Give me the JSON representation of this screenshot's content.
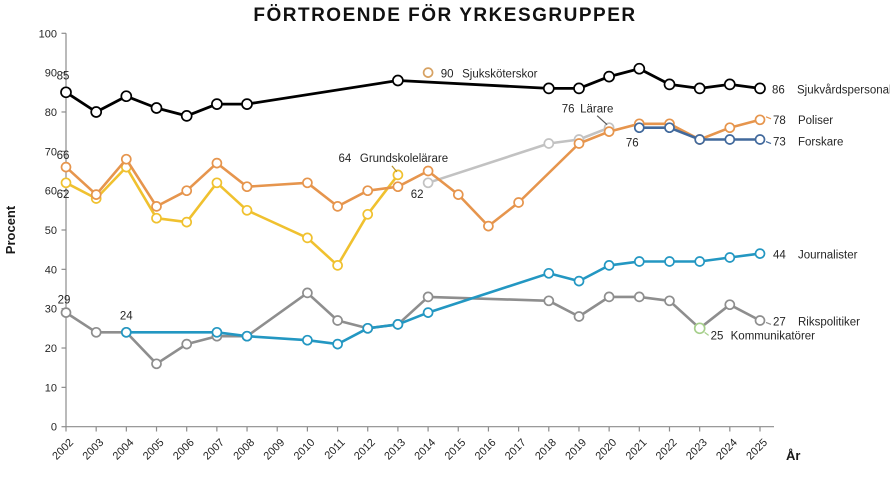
{
  "chart_data": {
    "type": "line",
    "title": "FÖRTROENDE FÖR YRKESGRUPPER",
    "xlabel": "År",
    "ylabel": "Procent",
    "ylim": [
      0,
      100
    ],
    "ytick_step": 10,
    "grid": false,
    "legend_position": "line-end-labels",
    "categories": [
      "2002",
      "2003",
      "2004",
      "2005",
      "2006",
      "2007",
      "2008",
      "2009",
      "2010",
      "2011",
      "2012",
      "2013",
      "2014",
      "2015",
      "2016",
      "2017",
      "2018",
      "2019",
      "2020",
      "2021",
      "2022",
      "2023",
      "2024",
      "2025"
    ],
    "series": [
      {
        "id": "larare",
        "name": "Lärare",
        "color": "#c2c2c2",
        "line_width": 2.6,
        "values": [
          null,
          null,
          null,
          null,
          null,
          null,
          null,
          null,
          null,
          null,
          null,
          null,
          62,
          null,
          null,
          null,
          72,
          73,
          76,
          null,
          null,
          null,
          null,
          null
        ],
        "labels": [
          {
            "text": "62",
            "index": 12,
            "dx": -11,
            "dy": 15,
            "anchor": "middle"
          },
          {
            "text": "76",
            "index": 18,
            "dx": -41,
            "dy": -15,
            "anchor": "middle"
          },
          {
            "text": "Lärare",
            "index": 18,
            "dx": -29,
            "dy": -15,
            "anchor": "start"
          }
        ],
        "leaders": [
          {
            "index": 18,
            "seg": [
              -12,
              -12,
              -2,
              -3
            ],
            "color": "#595959"
          }
        ]
      },
      {
        "id": "grundskolelarare",
        "name": "Grundskolelärare",
        "color": "#f0c12f",
        "line_width": 2.6,
        "values": [
          62,
          58,
          66,
          53,
          52,
          62,
          55,
          null,
          48,
          41,
          54,
          64,
          null,
          null,
          null,
          null,
          null,
          null,
          null,
          null,
          null,
          null,
          null,
          null
        ],
        "labels": [
          {
            "text": "62",
            "index": 0,
            "dx": -3,
            "dy": 15,
            "anchor": "middle"
          },
          {
            "text": "64",
            "index": 11,
            "dx": -53,
            "dy": -13,
            "anchor": "middle"
          },
          {
            "text": "Grundskolelärare",
            "index": 11,
            "dx": -38,
            "dy": -13,
            "anchor": "start"
          }
        ],
        "leaders": [
          {
            "index": 11,
            "seg": [
              -6,
              -9,
              -1,
              -3
            ],
            "color": "#b8932a"
          }
        ]
      },
      {
        "id": "poliser",
        "name": "Poliser",
        "color": "#e6954d",
        "line_width": 2.6,
        "values": [
          66,
          59,
          68,
          56,
          60,
          67,
          61,
          null,
          62,
          56,
          60,
          61,
          65,
          59,
          51,
          57,
          null,
          72,
          75,
          77,
          77,
          73,
          76,
          78
        ],
        "labels": [
          {
            "text": "66",
            "index": 0,
            "dx": -3,
            "dy": -8,
            "anchor": "middle"
          }
        ],
        "end_label": {
          "value": "78",
          "name": "Poliser",
          "dx_value": 13,
          "dx_name": 38,
          "dy": 4,
          "leader": [
            6,
            -3,
            11,
            -1
          ]
        }
      },
      {
        "id": "forskare",
        "name": "Forskare",
        "color": "#41699c",
        "line_width": 2.6,
        "values": [
          null,
          null,
          null,
          null,
          null,
          null,
          null,
          null,
          null,
          null,
          null,
          null,
          null,
          null,
          null,
          null,
          null,
          null,
          null,
          76,
          76,
          73,
          73,
          73
        ],
        "labels": [
          {
            "text": "76",
            "index": 19,
            "dx": -7,
            "dy": 19,
            "anchor": "middle"
          }
        ],
        "end_label": {
          "value": "73",
          "name": "Forskare",
          "dx_value": 13,
          "dx_name": 38,
          "dy": 6,
          "leader": [
            6,
            2,
            11,
            4
          ]
        }
      },
      {
        "id": "sjukvardspersonal",
        "name": "Sjukvårdspersonal",
        "color": "#000000",
        "line_width": 2.8,
        "marker_radius": 5,
        "values": [
          85,
          80,
          84,
          81,
          79,
          82,
          82,
          null,
          null,
          null,
          null,
          88,
          null,
          null,
          null,
          null,
          86,
          86,
          89,
          91,
          87,
          86,
          87,
          86
        ],
        "labels": [
          {
            "text": "85",
            "index": 0,
            "dx": -3,
            "dy": -13,
            "anchor": "middle"
          }
        ],
        "end_label": {
          "value": "86",
          "name": "Sjukvårdspersonal",
          "dx_value": 12,
          "dx_name": 37,
          "dy": 5
        }
      },
      {
        "id": "rikspolitiker",
        "name": "Rikspolitiker",
        "color": "#8e8e8e",
        "line_width": 2.6,
        "values": [
          29,
          24,
          24,
          16,
          21,
          23,
          23,
          null,
          34,
          27,
          25,
          26,
          33,
          null,
          null,
          null,
          32,
          28,
          33,
          33,
          32,
          25,
          31,
          27
        ],
        "labels": [
          {
            "text": "29",
            "index": 0,
            "dx": -2,
            "dy": -9,
            "anchor": "middle"
          }
        ],
        "end_label": {
          "value": "27",
          "name": "Rikspolitiker",
          "dx_value": 13,
          "dx_name": 38,
          "dy": 5,
          "leader": [
            6,
            2,
            11,
            4
          ]
        }
      },
      {
        "id": "journalister",
        "name": "Journalister",
        "color": "#2397c2",
        "line_width": 2.6,
        "values": [
          null,
          null,
          24,
          null,
          null,
          24,
          23,
          null,
          22,
          21,
          25,
          26,
          29,
          null,
          null,
          null,
          39,
          37,
          41,
          42,
          42,
          42,
          43,
          44
        ],
        "labels": [
          {
            "text": "24",
            "index": 2,
            "dx": 0,
            "dy": -13,
            "anchor": "middle"
          }
        ],
        "end_label": {
          "value": "44",
          "name": "Journalister",
          "dx_value": 13,
          "dx_name": 38,
          "dy": 5
        }
      },
      {
        "id": "kommunikatorer",
        "name": "Kommunikatörer",
        "color": "#a6cf8b",
        "marker_radius": 5,
        "values": [
          null,
          null,
          null,
          null,
          null,
          null,
          null,
          null,
          null,
          null,
          null,
          null,
          null,
          null,
          null,
          null,
          null,
          null,
          null,
          null,
          null,
          25,
          null,
          null
        ],
        "end_label": {
          "value": "25",
          "name": "Kommunikatörer",
          "dx_value": 11,
          "dx_name": 31,
          "dy": 11,
          "leader": [
            5,
            4,
            9,
            7
          ]
        }
      },
      {
        "id": "sjukskoterskor",
        "name": "Sjuksköterskor",
        "color": "#d7a263",
        "values": [
          null,
          null,
          null,
          null,
          null,
          null,
          null,
          null,
          null,
          null,
          null,
          null,
          90,
          null,
          null,
          null,
          null,
          null,
          null,
          null,
          null,
          null,
          null,
          null
        ],
        "labels": [
          {
            "text": "90",
            "index": 12,
            "dx": 19,
            "dy": 5,
            "anchor": "middle"
          },
          {
            "text": "Sjuksköterskor",
            "index": 12,
            "dx": 34,
            "dy": 5,
            "anchor": "start"
          }
        ]
      }
    ]
  }
}
